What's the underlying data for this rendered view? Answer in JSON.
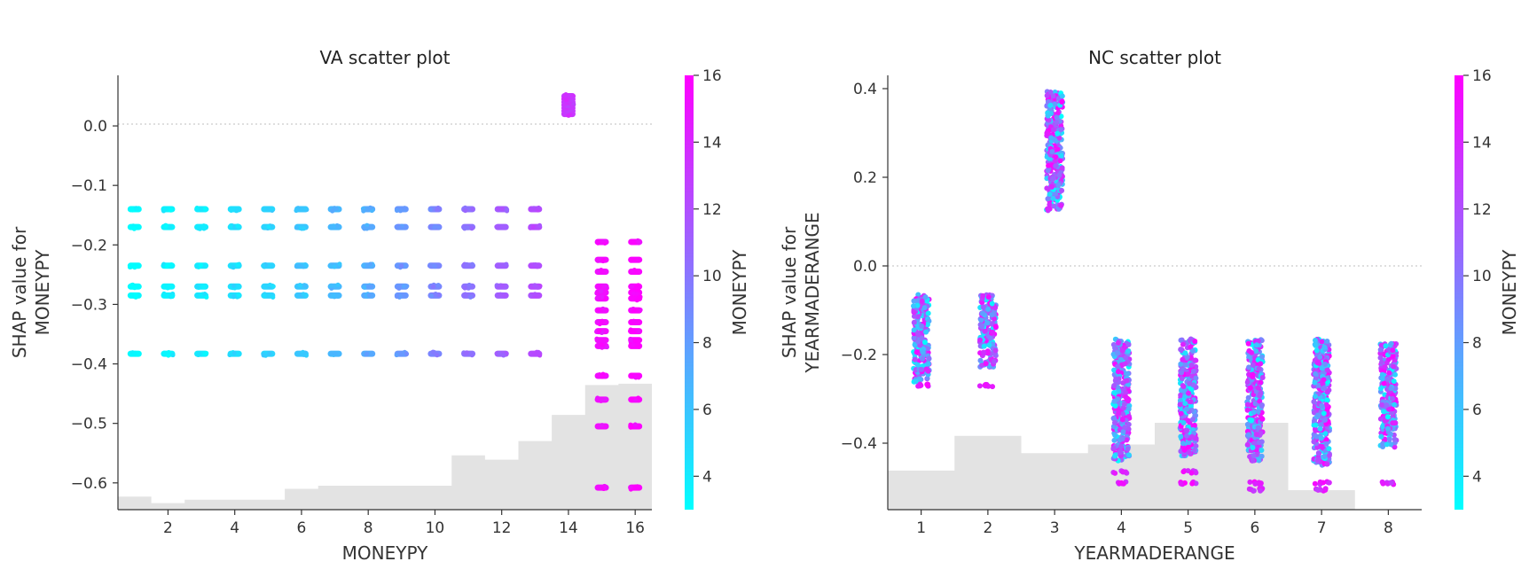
{
  "chart_data": [
    {
      "type": "scatter",
      "title": "VA scatter plot",
      "xlabel": "MONEYPY",
      "ylabel_lines": [
        "SHAP value for",
        "MONEYPY"
      ],
      "xlim": [
        0.5,
        16.5
      ],
      "ylim": [
        -0.645,
        0.085
      ],
      "x_ticks": [
        2,
        4,
        6,
        8,
        10,
        12,
        14,
        16
      ],
      "y_ticks": [
        0.0,
        -0.1,
        -0.2,
        -0.3,
        -0.4,
        -0.5,
        -0.6
      ],
      "y_tick_labels": [
        "0.0",
        "−0.1",
        "−0.2",
        "−0.3",
        "−0.4",
        "−0.5",
        "−0.6"
      ],
      "reference_line_y": 0.0,
      "color_feature": "MONEYPY",
      "colorbar": {
        "label": "MONEYPY",
        "range": [
          3,
          16
        ],
        "ticks": [
          4,
          6,
          8,
          10,
          12,
          14,
          16
        ]
      },
      "histogram": {
        "bin_edges": [
          0.5,
          1.5,
          2.5,
          3.5,
          4.5,
          5.5,
          6.5,
          7.5,
          8.5,
          9.5,
          10.5,
          11.5,
          12.5,
          13.5,
          14.5,
          15.5,
          16.5
        ],
        "heights": [
          0.03,
          0.015,
          0.023,
          0.023,
          0.023,
          0.048,
          0.055,
          0.055,
          0.055,
          0.055,
          0.125,
          0.115,
          0.158,
          0.218,
          0.287,
          0.29
        ]
      },
      "point_groups": [
        {
          "x": 1,
          "c": 3.2,
          "y": [
            -0.14,
            -0.17,
            -0.235,
            -0.27,
            -0.285,
            -0.383
          ]
        },
        {
          "x": 2,
          "c": 3.6,
          "y": [
            -0.14,
            -0.17,
            -0.235,
            -0.27,
            -0.285,
            -0.383
          ]
        },
        {
          "x": 3,
          "c": 4.0,
          "y": [
            -0.14,
            -0.17,
            -0.235,
            -0.27,
            -0.285,
            -0.383
          ]
        },
        {
          "x": 4,
          "c": 4.6,
          "y": [
            -0.14,
            -0.17,
            -0.235,
            -0.27,
            -0.285,
            -0.383
          ]
        },
        {
          "x": 5,
          "c": 5.2,
          "y": [
            -0.14,
            -0.17,
            -0.235,
            -0.27,
            -0.285,
            -0.383
          ]
        },
        {
          "x": 6,
          "c": 5.9,
          "y": [
            -0.14,
            -0.17,
            -0.235,
            -0.27,
            -0.285,
            -0.383
          ]
        },
        {
          "x": 7,
          "c": 6.6,
          "y": [
            -0.14,
            -0.17,
            -0.235,
            -0.27,
            -0.285,
            -0.383
          ]
        },
        {
          "x": 8,
          "c": 7.4,
          "y": [
            -0.14,
            -0.17,
            -0.235,
            -0.27,
            -0.285,
            -0.383
          ]
        },
        {
          "x": 9,
          "c": 8.3,
          "y": [
            -0.14,
            -0.17,
            -0.235,
            -0.27,
            -0.285,
            -0.383
          ]
        },
        {
          "x": 10,
          "c": 9.2,
          "y": [
            -0.14,
            -0.17,
            -0.235,
            -0.27,
            -0.285,
            -0.383
          ]
        },
        {
          "x": 11,
          "c": 10.2,
          "y": [
            -0.14,
            -0.17,
            -0.235,
            -0.27,
            -0.285,
            -0.383
          ]
        },
        {
          "x": 12,
          "c": 11.2,
          "y": [
            -0.14,
            -0.17,
            -0.235,
            -0.27,
            -0.285,
            -0.383
          ]
        },
        {
          "x": 13,
          "c": 12.2,
          "y": [
            -0.14,
            -0.17,
            -0.235,
            -0.27,
            -0.285,
            -0.383
          ]
        },
        {
          "x": 14,
          "c": 13.2,
          "y": [
            0.05,
            0.045,
            0.04,
            0.035,
            0.03,
            0.025,
            0.02
          ]
        },
        {
          "x": 15,
          "c": 15.3,
          "y": [
            -0.195,
            -0.225,
            -0.245,
            -0.27,
            -0.28,
            -0.29,
            -0.31,
            -0.33,
            -0.345,
            -0.36,
            -0.37,
            -0.42,
            -0.46,
            -0.505,
            -0.608
          ]
        },
        {
          "x": 16,
          "c": 15.8,
          "y": [
            -0.195,
            -0.225,
            -0.245,
            -0.27,
            -0.28,
            -0.29,
            -0.31,
            -0.33,
            -0.345,
            -0.36,
            -0.37,
            -0.42,
            -0.46,
            -0.505,
            -0.608
          ]
        }
      ]
    },
    {
      "type": "scatter",
      "title": "NC scatter plot",
      "xlabel": "YEARMADERANGE",
      "ylabel_lines": [
        "SHAP value for",
        "YEARMADERANGE"
      ],
      "xlim": [
        0.5,
        8.5
      ],
      "ylim": [
        -0.55,
        0.43
      ],
      "x_ticks": [
        1,
        2,
        3,
        4,
        5,
        6,
        7,
        8
      ],
      "y_ticks": [
        0.4,
        0.2,
        0.0,
        -0.2,
        -0.4
      ],
      "y_tick_labels": [
        "0.4",
        "0.2",
        "0.0",
        "−0.2",
        "−0.4"
      ],
      "reference_line_y": 0.0,
      "color_feature": "MONEYPY",
      "colorbar": {
        "label": "MONEYPY",
        "range": [
          3,
          16
        ],
        "ticks": [
          4,
          6,
          8,
          10,
          12,
          14,
          16
        ]
      },
      "histogram": {
        "bin_edges": [
          0.5,
          1.5,
          2.5,
          3.5,
          4.5,
          5.5,
          6.5,
          7.5,
          8.5
        ],
        "heights": [
          0.09,
          0.17,
          0.13,
          0.15,
          0.2,
          0.2,
          0.045,
          0.0
        ]
      },
      "point_groups": [
        {
          "x": 1,
          "y_range": [
            -0.265,
            -0.065
          ],
          "outliers": [
            -0.27
          ]
        },
        {
          "x": 2,
          "y_range": [
            -0.23,
            -0.065
          ],
          "outliers": [
            -0.27
          ]
        },
        {
          "x": 3,
          "y_range": [
            0.125,
            0.395
          ],
          "outliers": []
        },
        {
          "x": 4,
          "y_range": [
            -0.44,
            -0.165
          ],
          "outliers": [
            -0.49,
            -0.465
          ]
        },
        {
          "x": 5,
          "y_range": [
            -0.43,
            -0.165
          ],
          "outliers": [
            -0.49,
            -0.465
          ]
        },
        {
          "x": 6,
          "y_range": [
            -0.44,
            -0.165
          ],
          "outliers": [
            -0.505,
            -0.49
          ]
        },
        {
          "x": 7,
          "y_range": [
            -0.45,
            -0.165
          ],
          "outliers": [
            -0.505,
            -0.49
          ]
        },
        {
          "x": 8,
          "y_range": [
            -0.41,
            -0.175
          ],
          "outliers": [
            -0.49
          ]
        }
      ]
    }
  ]
}
